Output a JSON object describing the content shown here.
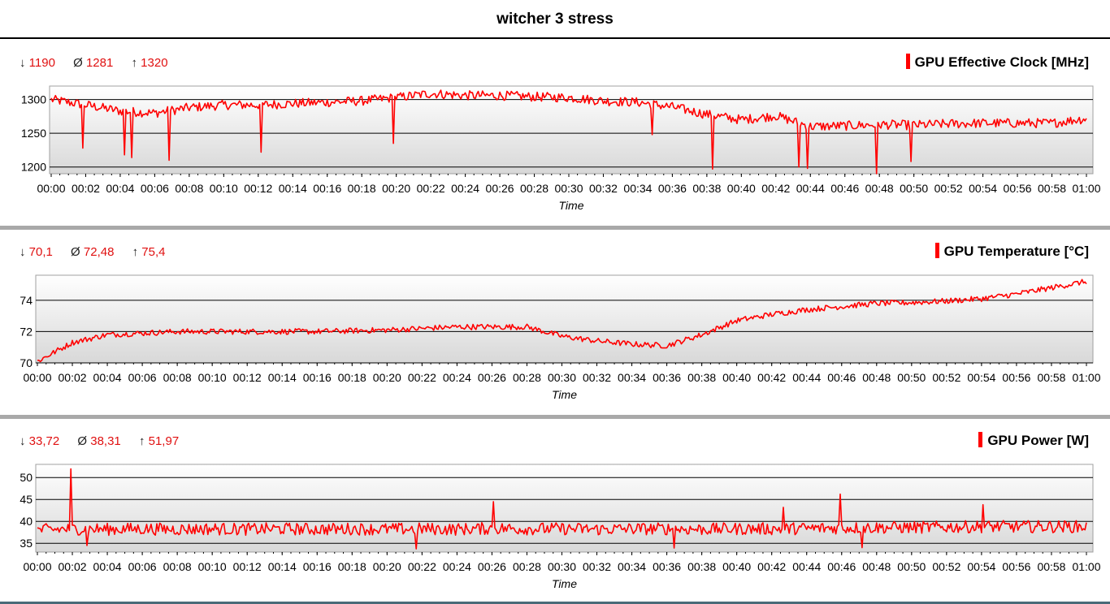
{
  "page": {
    "title": "witcher 3 stress"
  },
  "chart_data": [
    {
      "type": "line",
      "legend": "GPU Effective Clock [MHz]",
      "stats": {
        "min": "1190",
        "avg": "1281",
        "max": "1320"
      },
      "xlabel": "Time",
      "ylabel": "",
      "xlim": [
        "00:00",
        "01:00"
      ],
      "ylim": [
        1190,
        1320
      ],
      "yticks": [
        1200,
        1250,
        1300
      ],
      "grid": true,
      "legend_position": "top-right",
      "color": "#ff0000",
      "series": [
        {
          "x": [
            "00:00",
            "00:02",
            "00:04",
            "00:06",
            "00:08",
            "00:10",
            "00:12",
            "00:14",
            "00:16",
            "00:18",
            "00:20",
            "00:22",
            "00:24",
            "00:26",
            "00:28",
            "00:30",
            "00:32",
            "00:34",
            "00:36",
            "00:38",
            "00:40",
            "00:42",
            "00:44",
            "00:46",
            "00:48",
            "00:50",
            "00:52",
            "00:54",
            "00:56",
            "00:58",
            "01:00"
          ],
          "y": [
            1300,
            1292,
            1283,
            1280,
            1288,
            1292,
            1292,
            1294,
            1296,
            1298,
            1303,
            1309,
            1306,
            1306,
            1304,
            1303,
            1298,
            1296,
            1289,
            1278,
            1270,
            1276,
            1260,
            1261,
            1263,
            1262,
            1264,
            1265,
            1265,
            1265,
            1272
          ]
        }
      ],
      "dips": [
        {
          "x": "00:01:50",
          "y": 1228
        },
        {
          "x": "00:04:15",
          "y": 1218
        },
        {
          "x": "00:04:40",
          "y": 1214
        },
        {
          "x": "00:06:50",
          "y": 1210
        },
        {
          "x": "00:12:10",
          "y": 1222
        },
        {
          "x": "00:19:50",
          "y": 1235
        },
        {
          "x": "00:34:50",
          "y": 1248
        },
        {
          "x": "00:38:20",
          "y": 1197
        },
        {
          "x": "00:43:20",
          "y": 1200
        },
        {
          "x": "00:43:50",
          "y": 1198
        },
        {
          "x": "00:47:50",
          "y": 1190
        },
        {
          "x": "00:49:50",
          "y": 1208
        }
      ]
    },
    {
      "type": "line",
      "legend": "GPU Temperature [°C]",
      "stats": {
        "min": "70,1",
        "avg": "72,48",
        "max": "75,4"
      },
      "xlabel": "Time",
      "ylabel": "",
      "xlim": [
        "00:00",
        "01:00"
      ],
      "ylim": [
        70,
        75.6
      ],
      "yticks": [
        70,
        72,
        74
      ],
      "grid": true,
      "legend_position": "top-right",
      "color": "#ff0000",
      "series": [
        {
          "x": [
            "00:00",
            "00:02",
            "00:04",
            "00:06",
            "00:08",
            "00:10",
            "00:12",
            "00:14",
            "00:16",
            "00:18",
            "00:20",
            "00:22",
            "00:24",
            "00:26",
            "00:28",
            "00:30",
            "00:32",
            "00:34",
            "00:36",
            "00:38",
            "00:40",
            "00:42",
            "00:44",
            "00:46",
            "00:48",
            "00:50",
            "00:52",
            "00:54",
            "00:56",
            "00:58",
            "01:00"
          ],
          "y": [
            70.1,
            71.3,
            71.8,
            71.9,
            72.0,
            72.0,
            72.0,
            72.0,
            72.0,
            72.05,
            72.1,
            72.2,
            72.3,
            72.3,
            72.3,
            71.7,
            71.4,
            71.2,
            71.1,
            71.8,
            72.7,
            73.1,
            73.4,
            73.6,
            73.8,
            73.85,
            73.95,
            74.1,
            74.4,
            74.8,
            75.2
          ]
        }
      ]
    },
    {
      "type": "line",
      "legend": "GPU Power [W]",
      "stats": {
        "min": "33,72",
        "avg": "38,31",
        "max": "51,97"
      },
      "xlabel": "Time",
      "ylabel": "",
      "xlim": [
        "00:00",
        "01:00"
      ],
      "ylim": [
        33,
        53
      ],
      "yticks": [
        35,
        40,
        45,
        50
      ],
      "grid": true,
      "legend_position": "top-right",
      "color": "#ff0000",
      "series": [
        {
          "x": [
            "00:00",
            "00:02",
            "00:04",
            "00:06",
            "00:08",
            "00:10",
            "00:12",
            "00:14",
            "00:16",
            "00:18",
            "00:20",
            "00:22",
            "00:24",
            "00:26",
            "00:28",
            "00:30",
            "00:32",
            "00:34",
            "00:36",
            "00:38",
            "00:40",
            "00:42",
            "00:44",
            "00:46",
            "00:48",
            "00:50",
            "00:52",
            "00:54",
            "00:56",
            "00:58",
            "01:00"
          ],
          "y": [
            38,
            38.3,
            38.2,
            38.3,
            38.2,
            38.3,
            38.2,
            38.3,
            38.2,
            38.3,
            38.2,
            38.3,
            38.2,
            38.4,
            38.3,
            38.3,
            38.2,
            38.3,
            38.3,
            38.2,
            38.3,
            38.3,
            38.4,
            38.5,
            38.6,
            38.6,
            38.7,
            38.8,
            38.8,
            38.8,
            38.8
          ]
        }
      ],
      "spikes": [
        {
          "x": "00:01:55",
          "y": 51.97
        },
        {
          "x": "00:26:05",
          "y": 44.5
        },
        {
          "x": "00:45:55",
          "y": 46.2
        },
        {
          "x": "00:54:05",
          "y": 43.8
        },
        {
          "x": "00:42:40",
          "y": 43.2
        },
        {
          "x": "00:02:50",
          "y": 34.5
        },
        {
          "x": "00:21:40",
          "y": 33.72
        },
        {
          "x": "00:36:25",
          "y": 33.9
        },
        {
          "x": "00:47:10",
          "y": 34.0
        }
      ]
    }
  ],
  "time_ticks": [
    "00:00",
    "00:02",
    "00:04",
    "00:06",
    "00:08",
    "00:10",
    "00:12",
    "00:14",
    "00:16",
    "00:18",
    "00:20",
    "00:22",
    "00:24",
    "00:26",
    "00:28",
    "00:30",
    "00:32",
    "00:34",
    "00:36",
    "00:38",
    "00:40",
    "00:42",
    "00:44",
    "00:46",
    "00:48",
    "00:50",
    "00:52",
    "00:54",
    "00:56",
    "00:58",
    "01:00"
  ],
  "symbols": {
    "min": "↓",
    "avg": "Ø",
    "max": "↑"
  }
}
